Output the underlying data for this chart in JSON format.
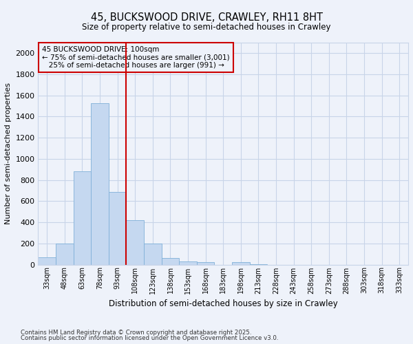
{
  "title_line1": "45, BUCKSWOOD DRIVE, CRAWLEY, RH11 8HT",
  "title_line2": "Size of property relative to semi-detached houses in Crawley",
  "xlabel": "Distribution of semi-detached houses by size in Crawley",
  "ylabel": "Number of semi-detached properties",
  "bar_labels": [
    "33sqm",
    "48sqm",
    "63sqm",
    "78sqm",
    "93sqm",
    "108sqm",
    "123sqm",
    "138sqm",
    "153sqm",
    "168sqm",
    "183sqm",
    "198sqm",
    "213sqm",
    "228sqm",
    "243sqm",
    "258sqm",
    "273sqm",
    "288sqm",
    "303sqm",
    "318sqm",
    "333sqm"
  ],
  "bar_values": [
    70,
    200,
    880,
    1530,
    690,
    420,
    200,
    65,
    30,
    25,
    0,
    25,
    5,
    0,
    0,
    0,
    0,
    0,
    0,
    0,
    0
  ],
  "bar_color": "#c5d8f0",
  "bar_edge_color": "#7fb0d8",
  "grid_color": "#c8d4e8",
  "background_color": "#eef2fa",
  "vline_x": 4.5,
  "vline_color": "#cc0000",
  "annotation_text": "45 BUCKSWOOD DRIVE: 100sqm\n← 75% of semi-detached houses are smaller (3,001)\n   25% of semi-detached houses are larger (991) →",
  "ylim": [
    0,
    2100
  ],
  "yticks": [
    0,
    200,
    400,
    600,
    800,
    1000,
    1200,
    1400,
    1600,
    1800,
    2000
  ],
  "footnote_line1": "Contains HM Land Registry data © Crown copyright and database right 2025.",
  "footnote_line2": "Contains public sector information licensed under the Open Government Licence v3.0."
}
